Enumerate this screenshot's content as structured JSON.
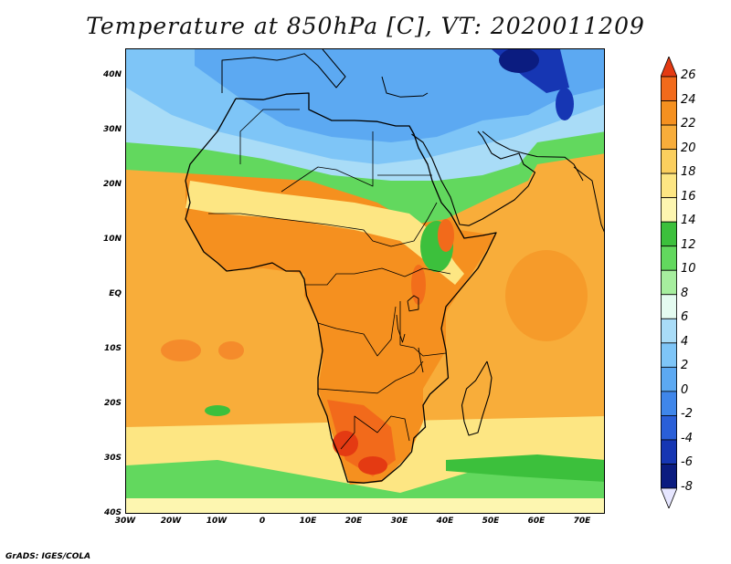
{
  "title": "Temperature at 850hPa [C], VT: 2020011209",
  "credit": "GrADS: IGES/COLA",
  "map": {
    "lon_range": [
      -30,
      75
    ],
    "lat_range": [
      -40,
      45
    ],
    "lat_ticks": [
      {
        "value": 40,
        "label": "40N"
      },
      {
        "value": 30,
        "label": "30N"
      },
      {
        "value": 20,
        "label": "20N"
      },
      {
        "value": 10,
        "label": "10N"
      },
      {
        "value": 0,
        "label": "EQ"
      },
      {
        "value": -10,
        "label": "10S"
      },
      {
        "value": -20,
        "label": "20S"
      },
      {
        "value": -30,
        "label": "30S"
      },
      {
        "value": -40,
        "label": "40S"
      }
    ],
    "lon_ticks": [
      {
        "value": -30,
        "label": "30W"
      },
      {
        "value": -20,
        "label": "20W"
      },
      {
        "value": -10,
        "label": "10W"
      },
      {
        "value": 0,
        "label": "0"
      },
      {
        "value": 10,
        "label": "10E"
      },
      {
        "value": 20,
        "label": "20E"
      },
      {
        "value": 30,
        "label": "30E"
      },
      {
        "value": 40,
        "label": "40E"
      },
      {
        "value": 50,
        "label": "50E"
      },
      {
        "value": 60,
        "label": "60E"
      },
      {
        "value": 70,
        "label": "70E"
      }
    ]
  },
  "colorbar": {
    "labels": [
      "26",
      "24",
      "22",
      "20",
      "18",
      "16",
      "14",
      "12",
      "10",
      "8",
      "6",
      "4",
      "2",
      "0",
      "-2",
      "-4",
      "-6",
      "-8"
    ],
    "colors": [
      "#e43a12",
      "#f26a1b",
      "#f5901f",
      "#f8ad3a",
      "#fbcf5e",
      "#fde683",
      "#fdf6b0",
      "#3cc03c",
      "#62d85e",
      "#a6ee9e",
      "#e4fbf0",
      "#a9dcf7",
      "#7ec5f7",
      "#5ca9f2",
      "#3f86ea",
      "#2a5fd8",
      "#1636b3",
      "#0b1c80"
    ],
    "bottom_tip": "#e6e6ff"
  },
  "fields": {
    "ocean_base": "#f8ad3a",
    "land_base": "#f5901f",
    "north_cold": "#5ca9f2",
    "north_mid": "#7ec5f7",
    "north_cool": "#a9dcf7",
    "green_band": "#62d85e",
    "dark_green": "#3cc03c",
    "pale_yellow": "#fde683",
    "light_yellow": "#fdf6b0",
    "hot": "#e43a12",
    "warm_red": "#f26a1b",
    "very_cold": "#1636b3",
    "cold_core": "#0b1c80",
    "coast": "#000000"
  }
}
